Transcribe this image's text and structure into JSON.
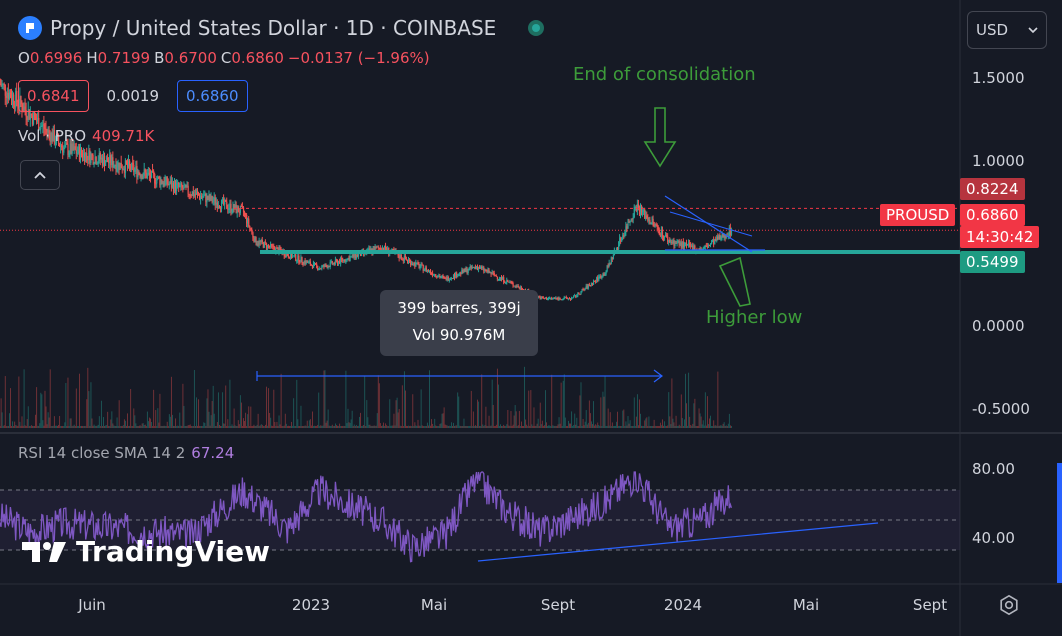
{
  "header": {
    "title": "Propy / United States Dollar · 1D · COINBASE",
    "ohlc": [
      {
        "k": "O",
        "v": "0.6996"
      },
      {
        "k": "H",
        "v": "0.7199"
      },
      {
        "k": "B",
        "v": "0.6700"
      },
      {
        "k": "C",
        "v": "0.6860"
      },
      {
        "k": "",
        "v": "−0.0137 (−1.96%)"
      }
    ],
    "box_sell": "0.6841",
    "box_spread": "0.0019",
    "box_buy": "0.6860"
  },
  "currency_select": {
    "value": "USD"
  },
  "volume": {
    "label": "Vol · PRO",
    "value": "409.71K"
  },
  "rsi_indicator": {
    "label": "RSI 14 close SMA 14 2",
    "value": "67.24"
  },
  "price_tags": {
    "high": "0.8224",
    "symbol": "PROUSD",
    "last": "0.6860",
    "countdown": "14:30:42",
    "support": "0.5499"
  },
  "tooltip": {
    "line1": "399 barres, 399j",
    "line2": "Vol 90.976M"
  },
  "annotations": {
    "top": "End of consolidation",
    "bottom": "Higher low"
  },
  "watermark": "TradingView",
  "colors": {
    "up": "#26a69a",
    "down": "#ef5350",
    "rsi": "#7e57c2",
    "trendline": "#2962ff",
    "support_line": "#26a69a",
    "annotation": "#3d9c3a"
  },
  "chart_data": [
    {
      "type": "candlestick",
      "title": "Propy / United States Dollar · 1D · COINBASE",
      "y_ticks": [
        "1.5000",
        "1.0000",
        "0.0000",
        "-0.5000"
      ],
      "x_ticks": [
        "Juin",
        "2023",
        "Mai",
        "Sept",
        "2024",
        "Mai",
        "Sept"
      ],
      "x_range": [
        "2022-04",
        "2024-10"
      ],
      "ylim": [
        -0.55,
        1.75
      ],
      "approx_close_path": [
        {
          "date": "2022-04",
          "value": 1.6
        },
        {
          "date": "2022-06",
          "value": 1.2
        },
        {
          "date": "2022-08",
          "value": 1.08
        },
        {
          "date": "2022-10",
          "value": 0.92
        },
        {
          "date": "2022-11-20",
          "value": 0.8
        },
        {
          "date": "2022-12",
          "value": 0.62
        },
        {
          "date": "2023-02",
          "value": 0.45
        },
        {
          "date": "2023-04",
          "value": 0.58
        },
        {
          "date": "2023-06",
          "value": 0.38
        },
        {
          "date": "2023-07",
          "value": 0.46
        },
        {
          "date": "2023-09",
          "value": 0.26
        },
        {
          "date": "2023-10",
          "value": 0.26
        },
        {
          "date": "2023-11",
          "value": 0.42
        },
        {
          "date": "2023-12",
          "value": 0.84
        },
        {
          "date": "2024-01",
          "value": 0.62
        },
        {
          "date": "2024-02",
          "value": 0.56
        },
        {
          "date": "2024-03",
          "value": 0.686
        }
      ],
      "horizontal_levels": [
        0.8224,
        0.686,
        0.5499
      ]
    },
    {
      "type": "line",
      "title": "RSI 14 close SMA 14 2",
      "y_ticks": [
        "80.00",
        "40.00"
      ],
      "ylim": [
        10,
        100
      ],
      "series": [
        {
          "name": "RSI",
          "points": [
            {
              "date": "2022-04",
              "value": 52
            },
            {
              "date": "2022-05",
              "value": 42
            },
            {
              "date": "2022-06",
              "value": 48
            },
            {
              "date": "2022-08",
              "value": 44
            },
            {
              "date": "2022-10",
              "value": 40
            },
            {
              "date": "2022-11-20",
              "value": 70
            },
            {
              "date": "2023-01",
              "value": 44
            },
            {
              "date": "2023-02",
              "value": 70
            },
            {
              "date": "2023-04",
              "value": 50
            },
            {
              "date": "2023-05",
              "value": 32
            },
            {
              "date": "2023-06",
              "value": 40
            },
            {
              "date": "2023-07",
              "value": 78
            },
            {
              "date": "2023-08",
              "value": 55
            },
            {
              "date": "2023-09",
              "value": 42
            },
            {
              "date": "2023-11",
              "value": 62
            },
            {
              "date": "2023-12",
              "value": 80
            },
            {
              "date": "2024-01",
              "value": 45
            },
            {
              "date": "2024-02",
              "value": 50
            },
            {
              "date": "2024-03",
              "value": 67.24
            }
          ]
        }
      ]
    }
  ]
}
